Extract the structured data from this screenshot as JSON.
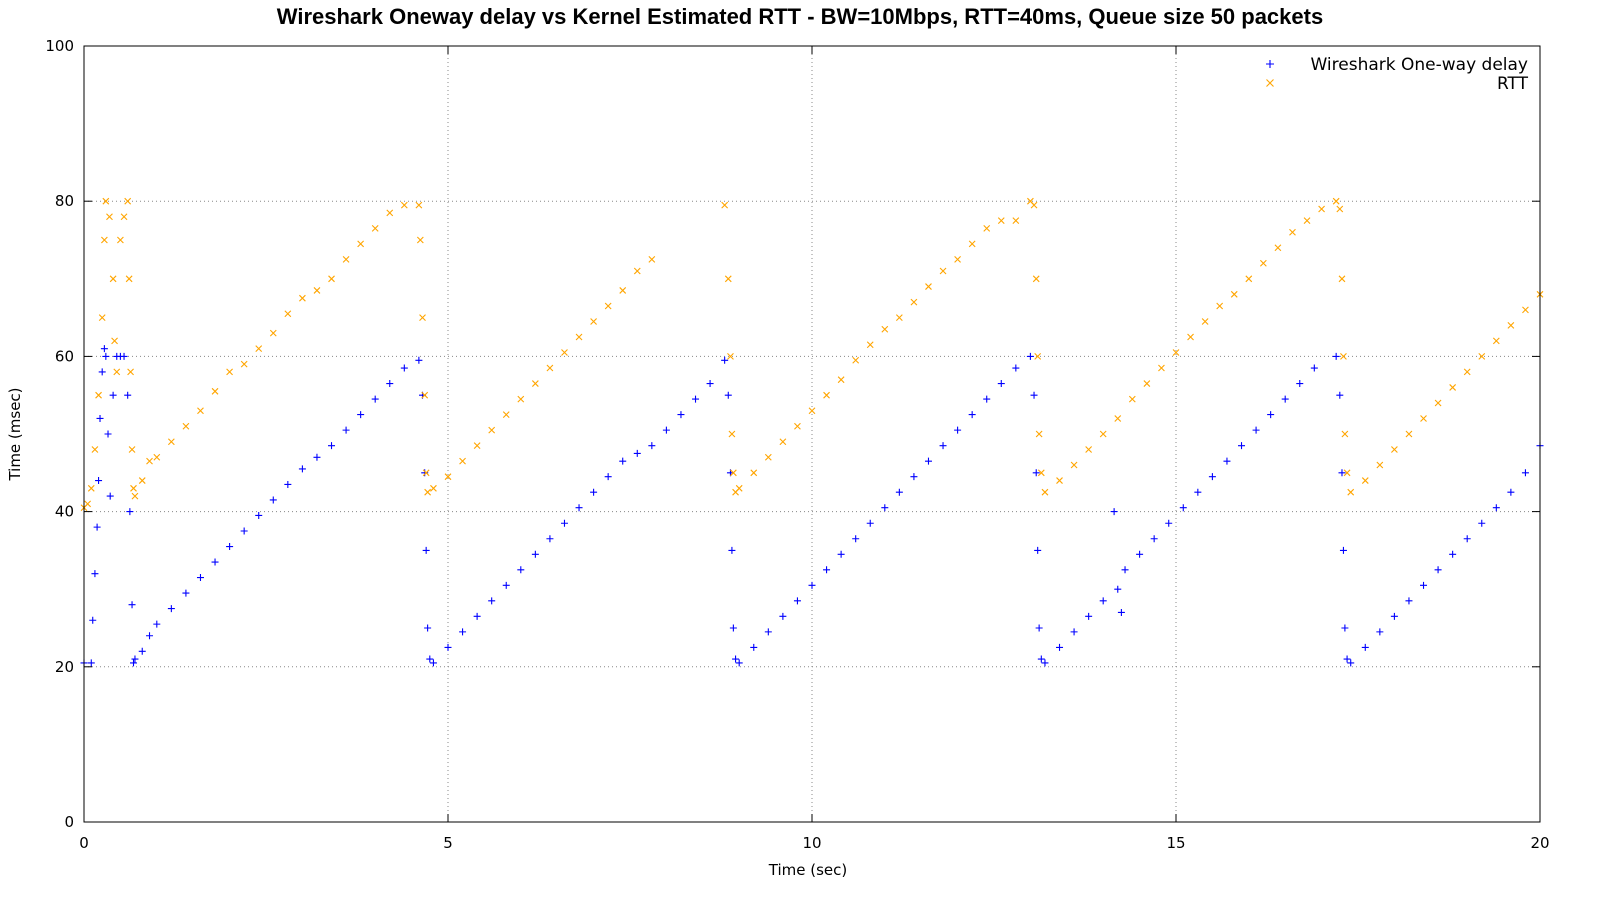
{
  "chart_data": {
    "type": "scatter",
    "title": "Wireshark Oneway delay vs Kernel Estimated RTT - BW=10Mbps, RTT=40ms, Queue size 50 packets",
    "xlabel": "Time (sec)",
    "ylabel": "Time (msec)",
    "xlim": [
      0,
      20
    ],
    "ylim": [
      0,
      100
    ],
    "xticks": [
      0,
      5,
      10,
      15,
      20
    ],
    "yticks": [
      0,
      20,
      40,
      60,
      80,
      100
    ],
    "grid": true,
    "legend_position": "top-right",
    "series": [
      {
        "name": "Wireshark One-way delay",
        "marker": "+",
        "color": "#0000ff",
        "points": [
          [
            0.0,
            20.5
          ],
          [
            0.1,
            20.5
          ],
          [
            0.12,
            26
          ],
          [
            0.15,
            32
          ],
          [
            0.18,
            38
          ],
          [
            0.2,
            44
          ],
          [
            0.22,
            52
          ],
          [
            0.25,
            58
          ],
          [
            0.28,
            61
          ],
          [
            0.3,
            60
          ],
          [
            0.33,
            50
          ],
          [
            0.36,
            42
          ],
          [
            0.4,
            55
          ],
          [
            0.45,
            60
          ],
          [
            0.5,
            60
          ],
          [
            0.55,
            60
          ],
          [
            0.6,
            55
          ],
          [
            0.63,
            40
          ],
          [
            0.66,
            28
          ],
          [
            0.68,
            20.5
          ],
          [
            0.7,
            21
          ],
          [
            0.8,
            22
          ],
          [
            0.9,
            24
          ],
          [
            1.0,
            25.5
          ],
          [
            1.2,
            27.5
          ],
          [
            1.4,
            29.5
          ],
          [
            1.6,
            31.5
          ],
          [
            1.8,
            33.5
          ],
          [
            2.0,
            35.5
          ],
          [
            2.2,
            37.5
          ],
          [
            2.4,
            39.5
          ],
          [
            2.6,
            41.5
          ],
          [
            2.8,
            43.5
          ],
          [
            3.0,
            45.5
          ],
          [
            3.2,
            47
          ],
          [
            3.4,
            48.5
          ],
          [
            3.6,
            50.5
          ],
          [
            3.8,
            52.5
          ],
          [
            4.0,
            54.5
          ],
          [
            4.2,
            56.5
          ],
          [
            4.4,
            58.5
          ],
          [
            4.6,
            59.5
          ],
          [
            4.65,
            55
          ],
          [
            4.68,
            45
          ],
          [
            4.7,
            35
          ],
          [
            4.72,
            25
          ],
          [
            4.75,
            21
          ],
          [
            4.8,
            20.5
          ],
          [
            5.0,
            22.5
          ],
          [
            5.2,
            24.5
          ],
          [
            5.4,
            26.5
          ],
          [
            5.6,
            28.5
          ],
          [
            5.8,
            30.5
          ],
          [
            6.0,
            32.5
          ],
          [
            6.2,
            34.5
          ],
          [
            6.4,
            36.5
          ],
          [
            6.6,
            38.5
          ],
          [
            6.8,
            40.5
          ],
          [
            7.0,
            42.5
          ],
          [
            7.2,
            44.5
          ],
          [
            7.4,
            46.5
          ],
          [
            7.6,
            47.5
          ],
          [
            7.8,
            48.5
          ],
          [
            8.0,
            50.5
          ],
          [
            8.2,
            52.5
          ],
          [
            8.4,
            54.5
          ],
          [
            8.6,
            56.5
          ],
          [
            8.8,
            59.5
          ],
          [
            8.85,
            55
          ],
          [
            8.88,
            45
          ],
          [
            8.9,
            35
          ],
          [
            8.92,
            25
          ],
          [
            8.95,
            21
          ],
          [
            9.0,
            20.5
          ],
          [
            9.2,
            22.5
          ],
          [
            9.4,
            24.5
          ],
          [
            9.6,
            26.5
          ],
          [
            9.8,
            28.5
          ],
          [
            10.0,
            30.5
          ],
          [
            10.2,
            32.5
          ],
          [
            10.4,
            34.5
          ],
          [
            10.6,
            36.5
          ],
          [
            10.8,
            38.5
          ],
          [
            11.0,
            40.5
          ],
          [
            11.2,
            42.5
          ],
          [
            11.4,
            44.5
          ],
          [
            11.6,
            46.5
          ],
          [
            11.8,
            48.5
          ],
          [
            12.0,
            50.5
          ],
          [
            12.2,
            52.5
          ],
          [
            12.4,
            54.5
          ],
          [
            12.6,
            56.5
          ],
          [
            12.8,
            58.5
          ],
          [
            13.0,
            60
          ],
          [
            13.05,
            55
          ],
          [
            13.08,
            45
          ],
          [
            13.1,
            35
          ],
          [
            13.12,
            25
          ],
          [
            13.15,
            21
          ],
          [
            13.2,
            20.5
          ],
          [
            13.4,
            22.5
          ],
          [
            13.6,
            24.5
          ],
          [
            13.8,
            26.5
          ],
          [
            14.0,
            28.5
          ],
          [
            14.15,
            40
          ],
          [
            14.2,
            30
          ],
          [
            14.25,
            27
          ],
          [
            14.3,
            32.5
          ],
          [
            14.5,
            34.5
          ],
          [
            14.7,
            36.5
          ],
          [
            14.9,
            38.5
          ],
          [
            15.1,
            40.5
          ],
          [
            15.3,
            42.5
          ],
          [
            15.5,
            44.5
          ],
          [
            15.7,
            46.5
          ],
          [
            15.9,
            48.5
          ],
          [
            16.1,
            50.5
          ],
          [
            16.3,
            52.5
          ],
          [
            16.5,
            54.5
          ],
          [
            16.7,
            56.5
          ],
          [
            16.9,
            58.5
          ],
          [
            17.2,
            60
          ],
          [
            17.25,
            55
          ],
          [
            17.28,
            45
          ],
          [
            17.3,
            35
          ],
          [
            17.32,
            25
          ],
          [
            17.35,
            21
          ],
          [
            17.4,
            20.5
          ],
          [
            17.6,
            22.5
          ],
          [
            17.8,
            24.5
          ],
          [
            18.0,
            26.5
          ],
          [
            18.2,
            28.5
          ],
          [
            18.4,
            30.5
          ],
          [
            18.6,
            32.5
          ],
          [
            18.8,
            34.5
          ],
          [
            19.0,
            36.5
          ],
          [
            19.2,
            38.5
          ],
          [
            19.4,
            40.5
          ],
          [
            19.6,
            42.5
          ],
          [
            19.8,
            45
          ],
          [
            20.0,
            48.5
          ]
        ]
      },
      {
        "name": "RTT",
        "marker": "x",
        "color": "#ffa500",
        "points": [
          [
            0.0,
            40.5
          ],
          [
            0.05,
            41
          ],
          [
            0.1,
            43
          ],
          [
            0.15,
            48
          ],
          [
            0.2,
            55
          ],
          [
            0.25,
            65
          ],
          [
            0.28,
            75
          ],
          [
            0.3,
            80
          ],
          [
            0.35,
            78
          ],
          [
            0.4,
            70
          ],
          [
            0.42,
            62
          ],
          [
            0.45,
            58
          ],
          [
            0.5,
            75
          ],
          [
            0.55,
            78
          ],
          [
            0.6,
            80
          ],
          [
            0.62,
            70
          ],
          [
            0.64,
            58
          ],
          [
            0.66,
            48
          ],
          [
            0.68,
            43
          ],
          [
            0.7,
            42
          ],
          [
            0.8,
            44
          ],
          [
            0.9,
            46.5
          ],
          [
            1.0,
            47
          ],
          [
            1.2,
            49
          ],
          [
            1.4,
            51
          ],
          [
            1.6,
            53
          ],
          [
            1.8,
            55.5
          ],
          [
            2.0,
            58
          ],
          [
            2.2,
            59
          ],
          [
            2.4,
            61
          ],
          [
            2.6,
            63
          ],
          [
            2.8,
            65.5
          ],
          [
            3.0,
            67.5
          ],
          [
            3.2,
            68.5
          ],
          [
            3.4,
            70
          ],
          [
            3.6,
            72.5
          ],
          [
            3.8,
            74.5
          ],
          [
            4.0,
            76.5
          ],
          [
            4.2,
            78.5
          ],
          [
            4.4,
            79.5
          ],
          [
            4.6,
            79.5
          ],
          [
            4.62,
            75
          ],
          [
            4.65,
            65
          ],
          [
            4.68,
            55
          ],
          [
            4.7,
            45
          ],
          [
            4.72,
            42.5
          ],
          [
            4.8,
            43
          ],
          [
            5.0,
            44.5
          ],
          [
            5.2,
            46.5
          ],
          [
            5.4,
            48.5
          ],
          [
            5.6,
            50.5
          ],
          [
            5.8,
            52.5
          ],
          [
            6.0,
            54.5
          ],
          [
            6.2,
            56.5
          ],
          [
            6.4,
            58.5
          ],
          [
            6.6,
            60.5
          ],
          [
            6.8,
            62.5
          ],
          [
            7.0,
            64.5
          ],
          [
            7.2,
            66.5
          ],
          [
            7.4,
            68.5
          ],
          [
            7.6,
            71
          ],
          [
            7.8,
            72.5
          ],
          [
            8.8,
            79.5
          ],
          [
            8.85,
            70
          ],
          [
            8.88,
            60
          ],
          [
            8.9,
            50
          ],
          [
            8.92,
            45
          ],
          [
            8.95,
            42.5
          ],
          [
            9.0,
            43
          ],
          [
            9.2,
            45
          ],
          [
            9.4,
            47
          ],
          [
            9.6,
            49
          ],
          [
            9.8,
            51
          ],
          [
            10.0,
            53
          ],
          [
            10.2,
            55
          ],
          [
            10.4,
            57
          ],
          [
            10.6,
            59.5
          ],
          [
            10.8,
            61.5
          ],
          [
            11.0,
            63.5
          ],
          [
            11.2,
            65
          ],
          [
            11.4,
            67
          ],
          [
            11.6,
            69
          ],
          [
            11.8,
            71
          ],
          [
            12.0,
            72.5
          ],
          [
            12.2,
            74.5
          ],
          [
            12.4,
            76.5
          ],
          [
            12.6,
            77.5
          ],
          [
            12.8,
            77.5
          ],
          [
            13.0,
            80
          ],
          [
            13.05,
            79.5
          ],
          [
            13.08,
            70
          ],
          [
            13.1,
            60
          ],
          [
            13.12,
            50
          ],
          [
            13.15,
            45
          ],
          [
            13.2,
            42.5
          ],
          [
            13.4,
            44
          ],
          [
            13.6,
            46
          ],
          [
            13.8,
            48
          ],
          [
            14.0,
            50
          ],
          [
            14.2,
            52
          ],
          [
            14.4,
            54.5
          ],
          [
            14.6,
            56.5
          ],
          [
            14.8,
            58.5
          ],
          [
            15.0,
            60.5
          ],
          [
            15.2,
            62.5
          ],
          [
            15.4,
            64.5
          ],
          [
            15.6,
            66.5
          ],
          [
            15.8,
            68
          ],
          [
            16.0,
            70
          ],
          [
            16.2,
            72
          ],
          [
            16.4,
            74
          ],
          [
            16.6,
            76
          ],
          [
            16.8,
            77.5
          ],
          [
            17.0,
            79
          ],
          [
            17.2,
            80
          ],
          [
            17.25,
            79
          ],
          [
            17.28,
            70
          ],
          [
            17.3,
            60
          ],
          [
            17.32,
            50
          ],
          [
            17.35,
            45
          ],
          [
            17.4,
            42.5
          ],
          [
            17.6,
            44
          ],
          [
            17.8,
            46
          ],
          [
            18.0,
            48
          ],
          [
            18.2,
            50
          ],
          [
            18.4,
            52
          ],
          [
            18.6,
            54
          ],
          [
            18.8,
            56
          ],
          [
            19.0,
            58
          ],
          [
            19.2,
            60
          ],
          [
            19.4,
            62
          ],
          [
            19.6,
            64
          ],
          [
            19.8,
            66
          ],
          [
            20.0,
            68
          ]
        ]
      }
    ]
  }
}
